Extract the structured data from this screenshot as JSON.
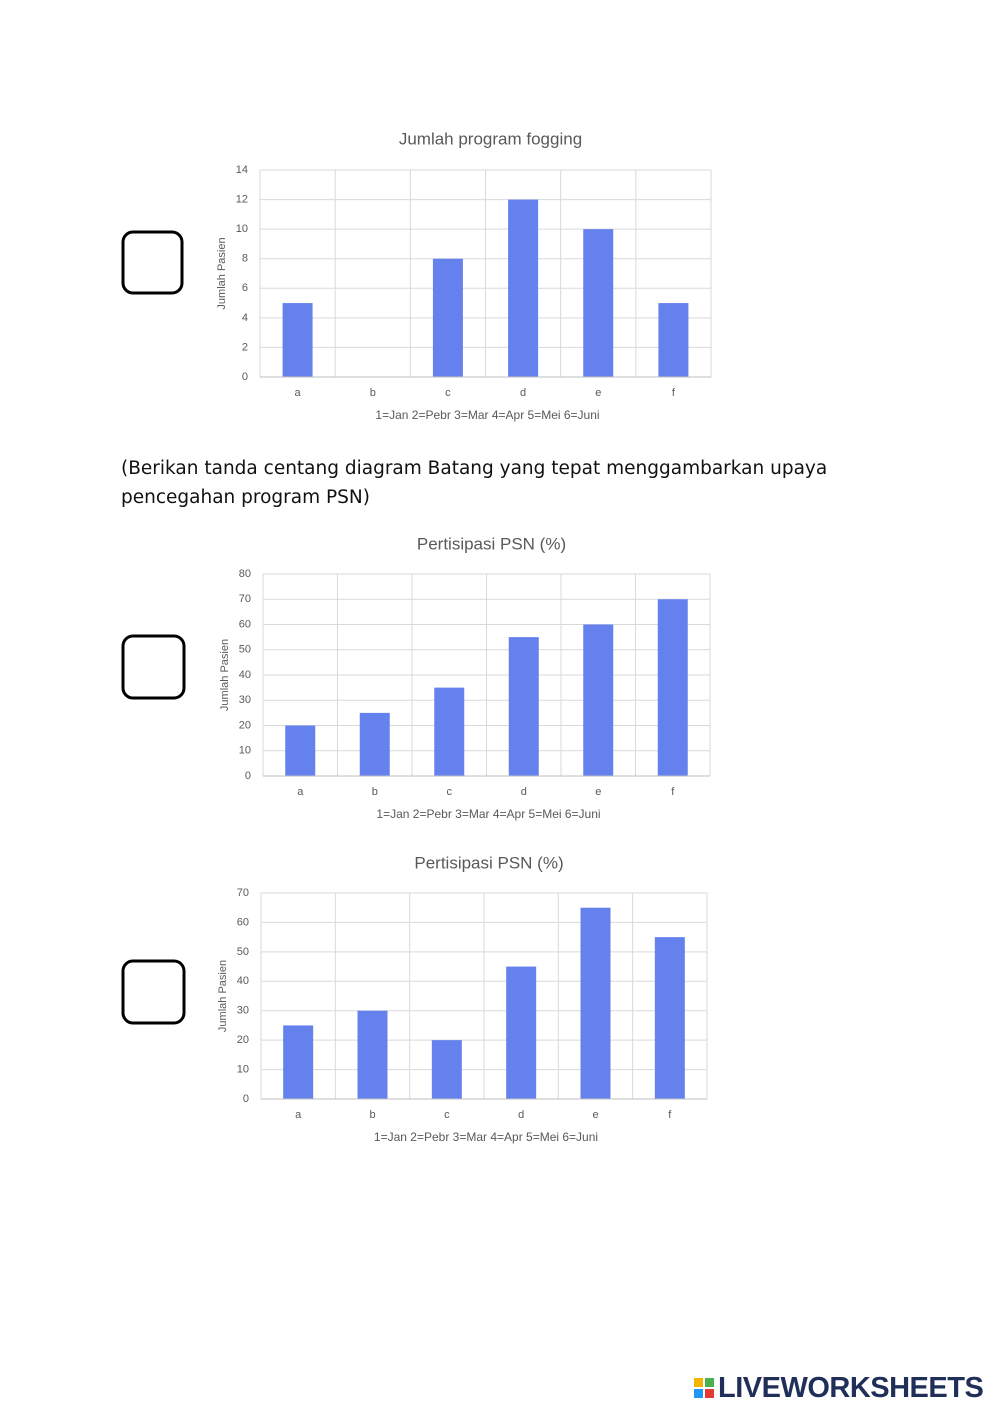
{
  "instruction": "(Berikan tanda centang diagram Batang yang tepat menggambarkan upaya pencegahan program PSN)",
  "logo": "LIVEWORKSHEETS",
  "chart_data": [
    {
      "type": "bar",
      "title": "Jumlah program fogging",
      "y_label": "Jumlah Pasien",
      "x_label": "1=Jan 2=Pebr 3=Mar 4=Apr 5=Mei 6=Juni",
      "categories": [
        "a",
        "b",
        "c",
        "d",
        "e",
        "f"
      ],
      "values": [
        5,
        0,
        8,
        12,
        10,
        5
      ],
      "color": "#6581ee",
      "ylim": [
        0,
        14
      ],
      "yticks": [
        0,
        2,
        4,
        6,
        8,
        10,
        12,
        14
      ],
      "grid": true
    },
    {
      "type": "bar",
      "title": "Pertisipasi PSN (%)",
      "y_label": "Jumlah Pasien",
      "x_label": "1=Jan 2=Pebr 3=Mar 4=Apr 5=Mei 6=Juni",
      "categories": [
        "a",
        "b",
        "c",
        "d",
        "e",
        "f"
      ],
      "values": [
        20,
        25,
        35,
        55,
        60,
        70
      ],
      "color": "#6581ee",
      "ylim": [
        0,
        80
      ],
      "yticks": [
        0,
        10,
        20,
        30,
        40,
        50,
        60,
        70,
        80
      ],
      "grid": true
    },
    {
      "type": "bar",
      "title": "Pertisipasi PSN (%)",
      "y_label": "Jumlah Pasien",
      "x_label": "1=Jan 2=Pebr 3=Mar 4=Apr 5=Mei 6=Juni",
      "categories": [
        "a",
        "b",
        "c",
        "d",
        "e",
        "f"
      ],
      "values": [
        25,
        30,
        20,
        45,
        65,
        55
      ],
      "color": "#6581ee",
      "ylim": [
        0,
        70
      ],
      "yticks": [
        0,
        10,
        20,
        30,
        40,
        50,
        60,
        70
      ],
      "grid": true
    }
  ]
}
